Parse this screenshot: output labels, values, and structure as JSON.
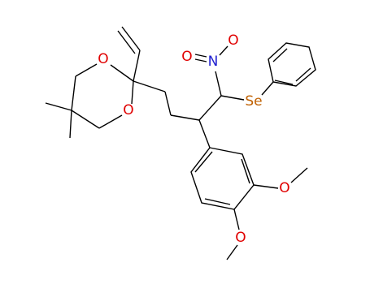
{
  "atoms": [
    {
      "label": "O"
    },
    {
      "label": "O"
    },
    {
      "label": "N"
    },
    {
      "label": "O"
    },
    {
      "label": "O"
    },
    {
      "label": "Se"
    },
    {
      "label": "O"
    },
    {
      "label": "O"
    }
  ]
}
